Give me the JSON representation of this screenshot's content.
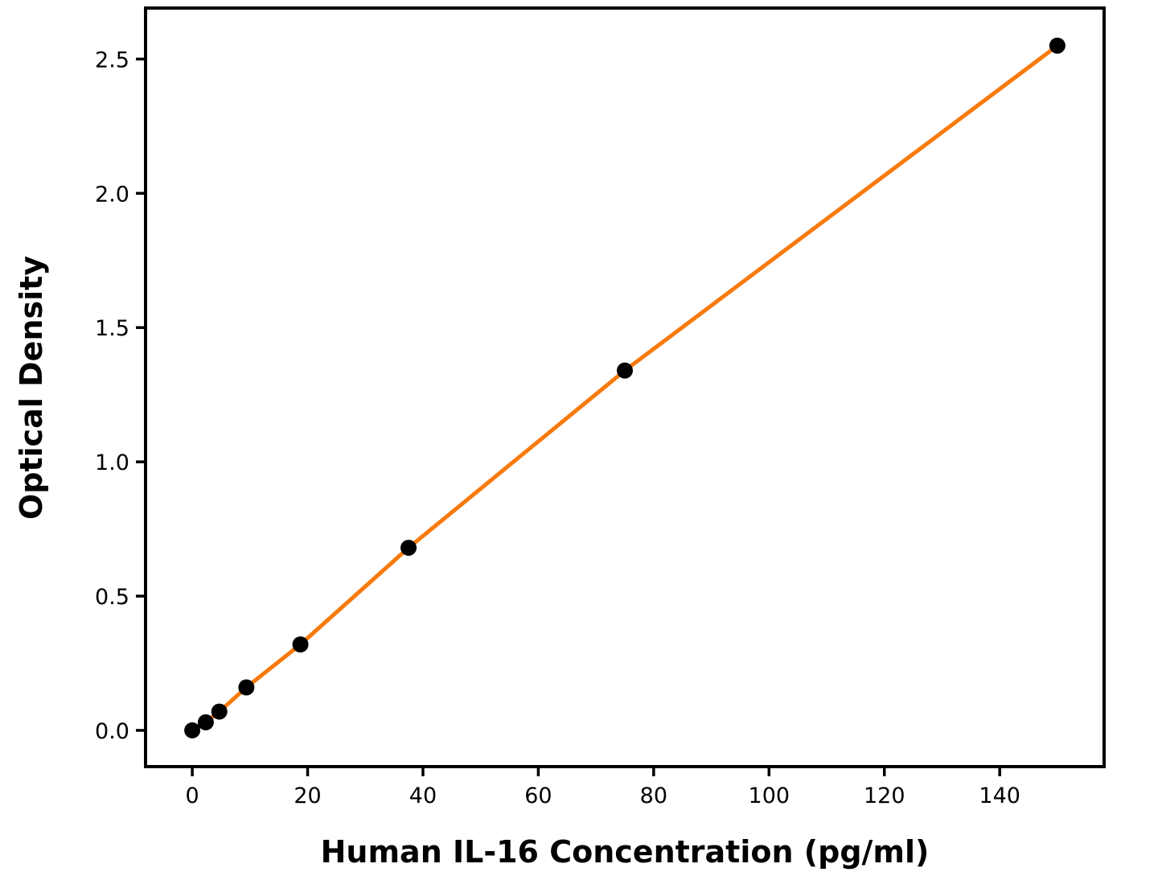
{
  "figure": {
    "background_color": "#ffffff",
    "text_color": "#000000"
  },
  "chart_data": {
    "type": "scatter",
    "title": "",
    "xlabel": "Human IL-16 Concentration (pg/ml)",
    "ylabel": "Optical Density",
    "grid": false,
    "legend": "none",
    "xlim": [
      -8.1,
      158.1
    ],
    "ylim": [
      -0.135,
      2.69
    ],
    "x_ticks": [
      {
        "v": 0,
        "label": "0"
      },
      {
        "v": 20,
        "label": "20"
      },
      {
        "v": 40,
        "label": "40"
      },
      {
        "v": 60,
        "label": "60"
      },
      {
        "v": 80,
        "label": "80"
      },
      {
        "v": 100,
        "label": "100"
      },
      {
        "v": 120,
        "label": "120"
      },
      {
        "v": 140,
        "label": "140"
      }
    ],
    "y_ticks": [
      {
        "v": 0.0,
        "label": "0.0"
      },
      {
        "v": 0.5,
        "label": "0.5"
      },
      {
        "v": 1.0,
        "label": "1.0"
      },
      {
        "v": 1.5,
        "label": "1.5"
      },
      {
        "v": 2.0,
        "label": "2.0"
      },
      {
        "v": 2.5,
        "label": "2.5"
      }
    ],
    "series": [
      {
        "name": "standard-curve",
        "x": [
          0,
          2.34,
          4.69,
          9.38,
          18.75,
          37.5,
          75,
          150
        ],
        "y": [
          0.0,
          0.03,
          0.07,
          0.16,
          0.32,
          0.68,
          1.34,
          2.55
        ],
        "line_color": "#F87A0D",
        "line_width": 5,
        "marker": "circle",
        "marker_color": "#000000",
        "marker_radius": 10
      }
    ],
    "frame_color": "#000000",
    "frame_width": 4,
    "tick_length": 12,
    "tick_width": 3.5
  }
}
